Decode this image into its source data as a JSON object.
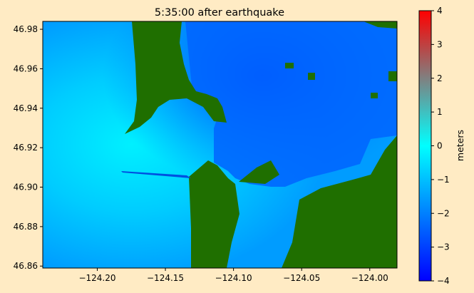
{
  "chart_data": {
    "type": "heatmap",
    "title": "5:35:00 after earthquake",
    "xlabel": "",
    "ylabel": "",
    "xlim": [
      -124.24,
      -123.98
    ],
    "ylim": [
      46.859,
      46.984
    ],
    "x_ticks": [
      -124.2,
      -124.15,
      -124.1,
      -124.05,
      -124.0
    ],
    "x_tick_labels": [
      "−124.20",
      "−124.15",
      "−124.10",
      "−124.05",
      "−124.00"
    ],
    "y_ticks": [
      46.86,
      46.88,
      46.9,
      46.92,
      46.94,
      46.96,
      46.98
    ],
    "y_tick_labels": [
      "46.86",
      "46.88",
      "46.90",
      "46.92",
      "46.94",
      "46.96",
      "46.98"
    ],
    "colorbar": {
      "label": "meters",
      "range": [
        -4,
        4
      ],
      "ticks": [
        -4,
        -3,
        -2,
        -1,
        0,
        1,
        2,
        3,
        4
      ],
      "tick_labels": [
        "−4",
        "−3",
        "−2",
        "−1",
        "0",
        "1",
        "2",
        "3",
        "4"
      ],
      "colors": [
        "#0000ff",
        "#0080ff",
        "#00ffff",
        "#808080",
        "#ff0000"
      ]
    },
    "land_color": "#1f6f00",
    "grid": false
  }
}
